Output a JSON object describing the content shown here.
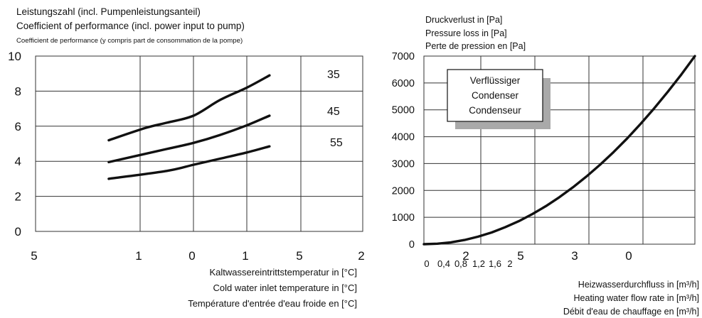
{
  "chart_data": [
    {
      "type": "line",
      "title_lines": [
        "Leistungszahl (incl. Pumpenleistungsanteil)",
        "Coefficient of performance (incl. power input to pump)",
        "Coefficient de performance (y compris part de consommation de la pompe)"
      ],
      "xlabel_lines": [
        "Kaltwassereintrittstemperatur in [°C]",
        "Cold water inlet temperature in [°C]",
        "Température d'entrée d'eau froide en [°C]"
      ],
      "xticks": [
        "5",
        "1",
        "0",
        "1",
        "5",
        "2"
      ],
      "yticks": [
        "0",
        "2",
        "4",
        "6",
        "8",
        "10"
      ],
      "ylim": [
        0,
        10
      ],
      "grid": true,
      "series": [
        {
          "name": "35",
          "x": [
            0.7,
            1.1,
            1.5,
            2.0,
            2.5,
            3.0,
            3.42
          ],
          "values": [
            5.2,
            5.9,
            6.2,
            6.6,
            7.5,
            8.2,
            8.9
          ]
        },
        {
          "name": "45",
          "x": [
            0.7,
            1.5,
            2.0,
            2.5,
            3.0,
            3.42
          ],
          "values": [
            3.95,
            4.7,
            5.05,
            5.5,
            6.05,
            6.6
          ]
        },
        {
          "name": "55",
          "x": [
            0.7,
            1.5,
            2.0,
            2.5,
            3.0,
            3.42
          ],
          "values": [
            3.0,
            3.45,
            3.8,
            4.15,
            4.5,
            4.85
          ]
        }
      ]
    },
    {
      "type": "line",
      "title_lines": [
        "Druckverlust in [Pa]",
        "Pressure loss in [Pa]",
        "Perte de pression en [Pa]"
      ],
      "legend_box_lines": [
        "Verflüssiger",
        "Condenser",
        "Condenseur"
      ],
      "xlabel_lines": [
        "Heizwasserdurchfluss in [m³/h]",
        "Heating water flow rate in [m³/h]",
        "Débit d'eau de chauffage en [m³/h]"
      ],
      "xticks_upper": [
        "2",
        "5",
        "3",
        "0"
      ],
      "xticks_lower": [
        "0",
        "0,4",
        "0,8",
        "1,2",
        "1,6",
        "2"
      ],
      "yticks": [
        "0",
        "1000",
        "2000",
        "3000",
        "4000",
        "5000",
        "6000",
        "7000"
      ],
      "ylim": [
        0,
        7000
      ],
      "xlim": [
        0,
        2
      ],
      "grid": true,
      "series": [
        {
          "x": [
            0,
            0.1,
            0.2,
            0.3,
            0.4,
            0.5,
            0.6,
            0.7,
            0.8,
            0.9,
            1.0,
            1.1,
            1.2,
            1.3,
            1.4,
            1.5,
            1.6,
            1.7,
            1.8,
            1.9,
            2.0
          ],
          "values": [
            0,
            18,
            70,
            157,
            280,
            437,
            630,
            857,
            1120,
            1417,
            1750,
            2117,
            2520,
            2957,
            3430,
            3937,
            4480,
            5057,
            5670,
            6317,
            7000
          ]
        }
      ]
    }
  ],
  "colors": {
    "line": "#111111",
    "grid": "#333333",
    "shadow": "#a9a9a9"
  }
}
